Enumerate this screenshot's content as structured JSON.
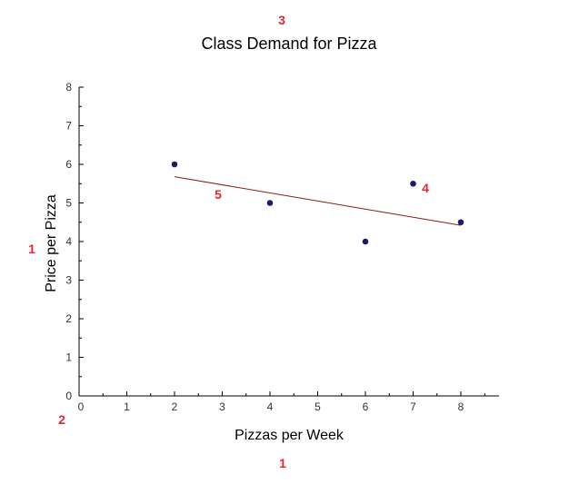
{
  "chart_data": {
    "type": "scatter",
    "title": "Class Demand for Pizza",
    "xlabel": "Pizzas per Week",
    "ylabel": "Price per Pizza",
    "xlim": [
      0,
      8.8
    ],
    "ylim": [
      0,
      8
    ],
    "x_ticks": [
      0,
      1,
      2,
      3,
      4,
      5,
      6,
      7,
      8
    ],
    "y_ticks": [
      0,
      1,
      2,
      3,
      4,
      5,
      6,
      7,
      8
    ],
    "series": [
      {
        "points": [
          {
            "x": 2,
            "y": 6
          },
          {
            "x": 4,
            "y": 5
          },
          {
            "x": 6,
            "y": 4
          },
          {
            "x": 7,
            "y": 5.5
          },
          {
            "x": 8,
            "y": 4.5
          }
        ],
        "color": "#1a1a6e"
      }
    ],
    "trendline": {
      "x1": 2,
      "y1": 5.68,
      "x2": 8,
      "y2": 4.42,
      "color": "#8b1a1a"
    },
    "grid": false
  },
  "annotations": [
    {
      "text": "3",
      "color": "#e8262b"
    },
    {
      "text": "1",
      "color": "#e8262b"
    },
    {
      "text": "2",
      "color": "#e8262b"
    },
    {
      "text": "1",
      "color": "#e8262b"
    },
    {
      "text": "4",
      "color": "#e8262b"
    },
    {
      "text": "5",
      "color": "#e8262b"
    }
  ]
}
